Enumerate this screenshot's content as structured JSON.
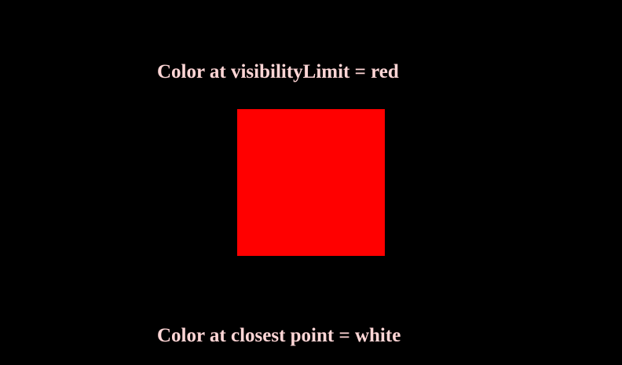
{
  "scene": {
    "top_label": "Color at visibilityLimit = red",
    "bottom_label": "Color at closest point = white"
  },
  "colors": {
    "background": "#000000",
    "square_fill": "#ff0000",
    "label_text": "#ffd6d6"
  }
}
